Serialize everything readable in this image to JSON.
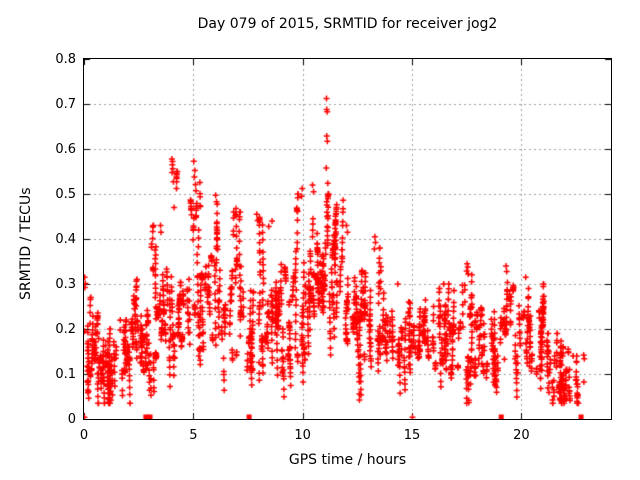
{
  "title": "Day 079 of 2015, SRMTID for receiver jog2",
  "axes": {
    "x": {
      "label": "GPS time / hours",
      "min": 0,
      "max": 24.1,
      "ticks": [
        0,
        5,
        10,
        15,
        20
      ],
      "tick_labels": [
        "0",
        "5",
        "10",
        "15",
        "20"
      ]
    },
    "y": {
      "label": "SRMTID / TECUs",
      "min": 0,
      "max": 0.8,
      "ticks": [
        0,
        0.1,
        0.2,
        0.3,
        0.4,
        0.5,
        0.6,
        0.7,
        0.8
      ],
      "tick_labels": [
        "0",
        "0.1",
        "0.2",
        "0.3",
        "0.4",
        "0.5",
        "0.6",
        "0.7",
        "0.8"
      ]
    }
  },
  "style": {
    "point_color": "#ff0000",
    "grid_color": "#a0a0a0",
    "border_color": "#000000",
    "tick_color": "#000000",
    "background": "#ffffff",
    "marker": "plus",
    "marker_half_size": 3,
    "marker_line_width": 1.5,
    "square_size": 5,
    "grid_dash": [
      2,
      3
    ],
    "tick_length": 6
  },
  "chart_data": {
    "type": "scatter",
    "title": "Day 079 of 2015, SRMTID for receiver jog2",
    "xlabel": "GPS time / hours",
    "ylabel": "SRMTID / TECUs",
    "xlim": [
      0,
      24.1
    ],
    "ylim": [
      0,
      0.8
    ],
    "grid": true,
    "legend": "none",
    "seed": 20150079,
    "series": [
      {
        "name": "SRMTID",
        "marker": "plus",
        "color": "#ff0000",
        "summary_bins": [
          [
            0.0,
            0.35,
            45,
            0.09,
            0.27,
            "b"
          ],
          [
            0.35,
            1.0,
            95,
            0.08,
            0.24,
            "b"
          ],
          [
            1.0,
            1.6,
            70,
            0.07,
            0.2,
            "b"
          ],
          [
            1.6,
            2.1,
            65,
            0.1,
            0.22,
            "b"
          ],
          [
            2.1,
            2.6,
            65,
            0.1,
            0.31,
            "b"
          ],
          [
            2.6,
            3.0,
            55,
            0.1,
            0.27,
            "b"
          ],
          [
            3.0,
            3.35,
            55,
            0.13,
            0.43,
            "s"
          ],
          [
            3.35,
            3.9,
            55,
            0.12,
            0.36,
            "b"
          ],
          [
            3.9,
            4.3,
            60,
            0.18,
            0.55,
            "s"
          ],
          [
            4.3,
            4.8,
            50,
            0.14,
            0.4,
            "b"
          ],
          [
            4.8,
            5.3,
            65,
            0.22,
            0.545,
            "s"
          ],
          [
            5.3,
            5.8,
            50,
            0.17,
            0.43,
            "b"
          ],
          [
            5.8,
            6.35,
            60,
            0.18,
            0.49,
            "s"
          ],
          [
            6.35,
            6.8,
            45,
            0.12,
            0.35,
            "b"
          ],
          [
            6.8,
            7.3,
            55,
            0.14,
            0.46,
            "s"
          ],
          [
            7.3,
            7.8,
            55,
            0.1,
            0.33,
            "b"
          ],
          [
            7.8,
            8.3,
            60,
            0.12,
            0.45,
            "s"
          ],
          [
            8.3,
            9.0,
            85,
            0.1,
            0.4,
            "b"
          ],
          [
            9.0,
            9.6,
            70,
            0.12,
            0.38,
            "b"
          ],
          [
            9.6,
            10.1,
            65,
            0.15,
            0.5,
            "s"
          ],
          [
            10.1,
            10.7,
            85,
            0.17,
            0.52,
            "b"
          ],
          [
            10.7,
            11.05,
            55,
            0.2,
            0.5,
            "b"
          ],
          [
            11.05,
            11.4,
            50,
            0.22,
            0.5,
            "b"
          ],
          [
            11.4,
            11.95,
            75,
            0.18,
            0.5,
            "b"
          ],
          [
            11.95,
            12.5,
            75,
            0.14,
            0.4,
            "b"
          ],
          [
            12.5,
            13.05,
            70,
            0.12,
            0.33,
            "b"
          ],
          [
            13.05,
            13.6,
            55,
            0.12,
            0.38,
            "b"
          ],
          [
            13.6,
            14.2,
            60,
            0.1,
            0.28,
            "b"
          ],
          [
            14.2,
            15.0,
            75,
            0.1,
            0.26,
            "b"
          ],
          [
            15.0,
            15.8,
            75,
            0.1,
            0.27,
            "b"
          ],
          [
            15.8,
            16.5,
            70,
            0.1,
            0.29,
            "b"
          ],
          [
            16.5,
            17.2,
            70,
            0.1,
            0.3,
            "b"
          ],
          [
            17.2,
            17.8,
            60,
            0.1,
            0.33,
            "s"
          ],
          [
            17.8,
            18.6,
            70,
            0.08,
            0.27,
            "b"
          ],
          [
            18.6,
            19.2,
            60,
            0.09,
            0.31,
            "b"
          ],
          [
            19.2,
            19.8,
            60,
            0.1,
            0.33,
            "b"
          ],
          [
            19.8,
            20.5,
            70,
            0.08,
            0.29,
            "b"
          ],
          [
            20.5,
            21.2,
            75,
            0.07,
            0.3,
            "b"
          ],
          [
            20.9,
            22.3,
            60,
            0.1,
            0.19,
            "b"
          ],
          [
            21.0,
            22.3,
            90,
            0.04,
            0.11,
            "b"
          ],
          [
            22.35,
            22.6,
            25,
            0.05,
            0.14,
            "b"
          ]
        ],
        "outliers": [
          [
            0.02,
            0.004
          ],
          [
            0.03,
            0.315
          ],
          [
            0.06,
            0.301
          ],
          [
            0.04,
            0.292
          ],
          [
            3.5,
            0.43
          ],
          [
            3.52,
            0.415
          ],
          [
            4.02,
            0.578
          ],
          [
            4.05,
            0.572
          ],
          [
            4.04,
            0.565
          ],
          [
            4.06,
            0.556
          ],
          [
            4.03,
            0.548
          ],
          [
            4.09,
            0.527
          ],
          [
            4.12,
            0.47
          ],
          [
            5.02,
            0.573
          ],
          [
            5.07,
            0.552
          ],
          [
            5.05,
            0.538
          ],
          [
            5.1,
            0.521
          ],
          [
            5.12,
            0.507
          ],
          [
            6.02,
            0.497
          ],
          [
            6.06,
            0.483
          ],
          [
            6.95,
            0.468
          ],
          [
            6.92,
            0.452
          ],
          [
            7.9,
            0.455
          ],
          [
            7.94,
            0.441
          ],
          [
            8.45,
            0.428
          ],
          [
            8.6,
            0.44
          ],
          [
            9.98,
            0.512
          ],
          [
            9.95,
            0.495
          ],
          [
            10.45,
            0.52
          ],
          [
            10.5,
            0.505
          ],
          [
            11.09,
            0.712
          ],
          [
            11.1,
            0.688
          ],
          [
            11.12,
            0.683
          ],
          [
            11.1,
            0.629
          ],
          [
            11.13,
            0.617
          ],
          [
            11.08,
            0.558
          ],
          [
            11.15,
            0.524
          ],
          [
            12.0,
            0.43
          ],
          [
            12.05,
            0.415
          ],
          [
            13.3,
            0.405
          ],
          [
            13.33,
            0.392
          ],
          [
            13.28,
            0.378
          ],
          [
            14.35,
            0.3
          ],
          [
            15.02,
            0.004
          ],
          [
            16.45,
            0.3
          ],
          [
            17.52,
            0.345
          ],
          [
            17.55,
            0.338
          ],
          [
            17.5,
            0.329
          ],
          [
            17.57,
            0.322
          ],
          [
            19.3,
            0.34
          ],
          [
            19.33,
            0.328
          ],
          [
            20.2,
            0.315
          ],
          [
            22.85,
            0.142
          ],
          [
            22.88,
            0.134
          ],
          [
            22.86,
            0.082
          ]
        ]
      },
      {
        "name": "axis-markers",
        "marker": "filled-square",
        "color": "#ff0000",
        "points": [
          [
            2.83,
            0
          ],
          [
            3.02,
            0
          ],
          [
            7.55,
            0
          ],
          [
            19.08,
            0
          ],
          [
            22.73,
            0
          ]
        ]
      }
    ]
  }
}
